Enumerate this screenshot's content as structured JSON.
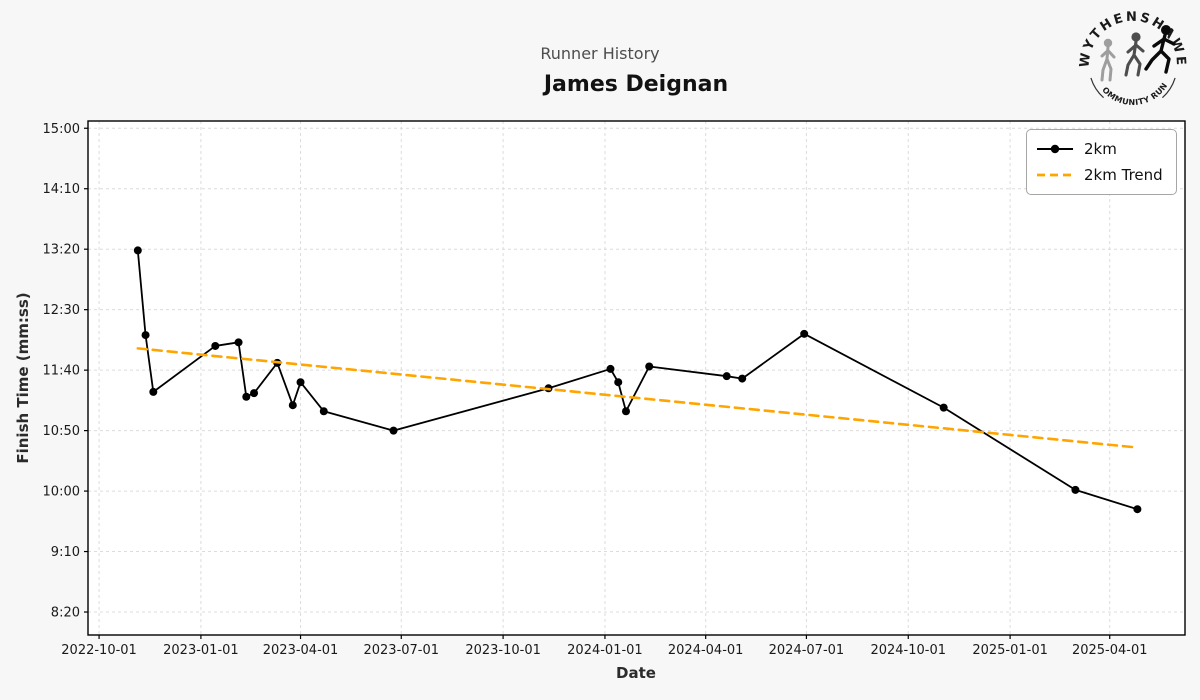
{
  "header": {
    "suptitle": "Runner History",
    "title": "James Deignan"
  },
  "logo": {
    "top_text": "WYTHENSHAWE",
    "bottom_text": "COMMUNITY RUN"
  },
  "axis_labels": {
    "x": "Date",
    "y": "Finish Time (mm:ss)"
  },
  "legend": {
    "items": [
      {
        "label": "2km"
      },
      {
        "label": "2km Trend"
      }
    ]
  },
  "colors": {
    "figure_bg": "#f7f7f7",
    "plot_bg": "#ffffff",
    "grid": "#dcdcdc",
    "spine": "#000000",
    "tick_label": "#1a1a1a",
    "line": "#000000",
    "trend": "#FFA500",
    "suptitle": "#4d4d4d",
    "title": "#121212"
  },
  "chart_data": {
    "type": "line",
    "suptitle": "Runner History",
    "title": "James Deignan",
    "xlabel": "Date",
    "ylabel": "Finish Time (mm:ss)",
    "grid": true,
    "legend_position": "upper right",
    "x_range": [
      "2022-09-21",
      "2025-06-08"
    ],
    "y_range_seconds": [
      481,
      906
    ],
    "x_ticks": [
      "2022-10-01",
      "2023-01-01",
      "2023-04-01",
      "2023-07-01",
      "2023-10-01",
      "2024-01-01",
      "2024-04-01",
      "2024-07-01",
      "2024-10-01",
      "2025-01-01",
      "2025-04-01"
    ],
    "y_ticks": [
      {
        "label": "15:00",
        "seconds": 900
      },
      {
        "label": "14:10",
        "seconds": 850
      },
      {
        "label": "13:20",
        "seconds": 800
      },
      {
        "label": "12:30",
        "seconds": 750
      },
      {
        "label": "11:40",
        "seconds": 700
      },
      {
        "label": "10:50",
        "seconds": 650
      },
      {
        "label": "10:00",
        "seconds": 600
      },
      {
        "label": "9:10",
        "seconds": 550
      },
      {
        "label": "8:20",
        "seconds": 500
      }
    ],
    "series": [
      {
        "name": "2km",
        "type": "line_markers",
        "color": "#000000",
        "points": [
          {
            "date": "2022-11-05",
            "time": "13:19",
            "seconds": 799
          },
          {
            "date": "2022-11-12",
            "time": "12:09",
            "seconds": 729
          },
          {
            "date": "2022-11-19",
            "time": "11:22",
            "seconds": 682
          },
          {
            "date": "2023-01-14",
            "time": "12:00",
            "seconds": 720
          },
          {
            "date": "2023-02-04",
            "time": "12:03",
            "seconds": 723
          },
          {
            "date": "2023-02-11",
            "time": "11:18",
            "seconds": 678
          },
          {
            "date": "2023-02-18",
            "time": "11:21",
            "seconds": 681
          },
          {
            "date": "2023-03-11",
            "time": "11:46",
            "seconds": 706
          },
          {
            "date": "2023-03-25",
            "time": "11:11",
            "seconds": 671
          },
          {
            "date": "2023-04-01",
            "time": "11:30",
            "seconds": 690
          },
          {
            "date": "2023-04-22",
            "time": "11:06",
            "seconds": 666
          },
          {
            "date": "2023-06-24",
            "time": "10:50",
            "seconds": 650
          },
          {
            "date": "2023-11-11",
            "time": "11:25",
            "seconds": 685
          },
          {
            "date": "2024-01-06",
            "time": "11:41",
            "seconds": 701
          },
          {
            "date": "2024-01-13",
            "time": "11:30",
            "seconds": 690
          },
          {
            "date": "2024-01-20",
            "time": "11:06",
            "seconds": 666
          },
          {
            "date": "2024-02-10",
            "time": "11:43",
            "seconds": 703
          },
          {
            "date": "2024-04-20",
            "time": "11:35",
            "seconds": 695
          },
          {
            "date": "2024-05-04",
            "time": "11:33",
            "seconds": 693
          },
          {
            "date": "2024-06-29",
            "time": "12:10",
            "seconds": 730
          },
          {
            "date": "2024-11-02",
            "time": "11:09",
            "seconds": 669
          },
          {
            "date": "2025-03-01",
            "time": "10:01",
            "seconds": 601
          },
          {
            "date": "2025-04-26",
            "time": "9:45",
            "seconds": 585
          }
        ]
      },
      {
        "name": "2km Trend",
        "type": "dashed_line",
        "color": "#FFA500",
        "points": [
          {
            "date": "2022-11-05",
            "time": "11:58",
            "seconds": 718
          },
          {
            "date": "2025-04-26",
            "time": "10:36",
            "seconds": 636
          }
        ]
      }
    ]
  }
}
